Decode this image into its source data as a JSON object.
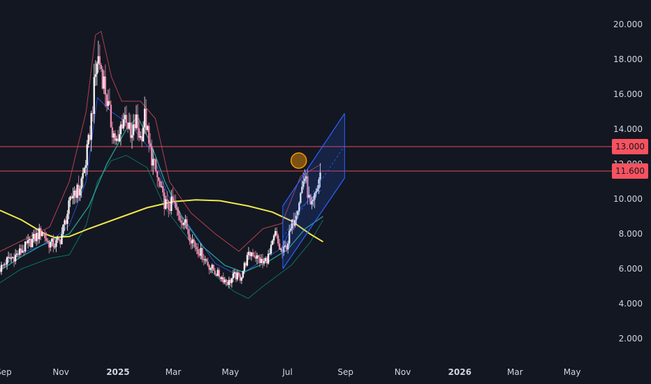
{
  "chart_data": {
    "type": "candlestick",
    "y_axis": {
      "ticks": [
        "2.000",
        "4.000",
        "6.000",
        "8.000",
        "10.000",
        "12.000",
        "14.000",
        "16.000",
        "18.000",
        "20.000"
      ],
      "ylim": [
        0.8,
        21
      ]
    },
    "x_axis": {
      "ticks": [
        {
          "label": "Sep",
          "date": "2024-09-01",
          "bold": false
        },
        {
          "label": "Nov",
          "date": "2024-11-01",
          "bold": false
        },
        {
          "label": "2025",
          "date": "2025-01-01",
          "bold": true
        },
        {
          "label": "Mar",
          "date": "2025-03-01",
          "bold": false
        },
        {
          "label": "May",
          "date": "2025-05-01",
          "bold": false
        },
        {
          "label": "Jul",
          "date": "2025-07-01",
          "bold": false
        },
        {
          "label": "Sep",
          "date": "2025-09-01",
          "bold": false
        },
        {
          "label": "Nov",
          "date": "2025-11-01",
          "bold": false
        },
        {
          "label": "2026",
          "date": "2026-01-01",
          "bold": true
        },
        {
          "label": "Mar",
          "date": "2026-03-01",
          "bold": false
        },
        {
          "label": "May",
          "date": "2026-05-01",
          "bold": false
        }
      ],
      "xlim": [
        "2024-08-28",
        "2026-05-30"
      ]
    },
    "horizontal_levels": [
      {
        "value": 13.0,
        "label": "13.000",
        "color": "#f7525f"
      },
      {
        "value": 11.6,
        "label": "11.600",
        "color": "#f7525f"
      }
    ],
    "price_series": [
      [
        "2024-08-28",
        6.0
      ],
      [
        "2024-09-05",
        6.5
      ],
      [
        "2024-09-15",
        6.8
      ],
      [
        "2024-09-25",
        7.3
      ],
      [
        "2024-10-05",
        7.8
      ],
      [
        "2024-10-12",
        8.2
      ],
      [
        "2024-10-18",
        7.5
      ],
      [
        "2024-10-25",
        7.4
      ],
      [
        "2024-10-31",
        7.6
      ],
      [
        "2024-11-05",
        8.6
      ],
      [
        "2024-11-10",
        9.6
      ],
      [
        "2024-11-15",
        10.5
      ],
      [
        "2024-11-20",
        10.4
      ],
      [
        "2024-11-25",
        11.5
      ],
      [
        "2024-11-28",
        12.3
      ],
      [
        "2024-12-01",
        13.3
      ],
      [
        "2024-12-06",
        16.0
      ],
      [
        "2024-12-10",
        18.2
      ],
      [
        "2024-12-14",
        17.5
      ],
      [
        "2024-12-18",
        16.4
      ],
      [
        "2024-12-22",
        15.0
      ],
      [
        "2024-12-27",
        13.8
      ],
      [
        "2025-01-01",
        13.0
      ],
      [
        "2025-01-05",
        14.5
      ],
      [
        "2025-01-10",
        14.8
      ],
      [
        "2025-01-15",
        13.2
      ],
      [
        "2025-01-20",
        14.5
      ],
      [
        "2025-01-25",
        13.5
      ],
      [
        "2025-01-30",
        14.8
      ],
      [
        "2025-02-03",
        13.0
      ],
      [
        "2025-02-08",
        12.0
      ],
      [
        "2025-02-13",
        11.0
      ],
      [
        "2025-02-18",
        10.0
      ],
      [
        "2025-02-23",
        9.5
      ],
      [
        "2025-03-01",
        9.8
      ],
      [
        "2025-03-06",
        9.0
      ],
      [
        "2025-03-12",
        8.8
      ],
      [
        "2025-03-18",
        8.0
      ],
      [
        "2025-03-25",
        7.3
      ],
      [
        "2025-04-01",
        6.8
      ],
      [
        "2025-04-08",
        6.2
      ],
      [
        "2025-04-15",
        5.8
      ],
      [
        "2025-04-22",
        5.5
      ],
      [
        "2025-04-29",
        5.2
      ],
      [
        "2025-05-05",
        5.6
      ],
      [
        "2025-05-12",
        5.5
      ],
      [
        "2025-05-18",
        6.5
      ],
      [
        "2025-05-24",
        7.0
      ],
      [
        "2025-05-30",
        6.6
      ],
      [
        "2025-06-05",
        6.3
      ],
      [
        "2025-06-12",
        6.8
      ],
      [
        "2025-06-18",
        8.0
      ],
      [
        "2025-06-22",
        7.2
      ],
      [
        "2025-06-26",
        6.9
      ],
      [
        "2025-07-01",
        7.5
      ],
      [
        "2025-07-06",
        8.5
      ],
      [
        "2025-07-11",
        9.5
      ],
      [
        "2025-07-16",
        10.5
      ],
      [
        "2025-07-19",
        11.4
      ],
      [
        "2025-07-22",
        10.6
      ],
      [
        "2025-07-26",
        9.3
      ],
      [
        "2025-07-29",
        9.8
      ],
      [
        "2025-08-02",
        10.7
      ],
      [
        "2025-08-06",
        11.8
      ]
    ],
    "moving_average_long": {
      "name": "",
      "color": "#f0e74b",
      "points": [
        [
          "2024-08-28",
          9.35
        ],
        [
          "2024-09-20",
          8.8
        ],
        [
          "2024-10-15",
          8.0
        ],
        [
          "2024-10-25",
          7.8
        ],
        [
          "2024-11-10",
          7.85
        ],
        [
          "2024-12-01",
          8.3
        ],
        [
          "2025-01-01",
          8.9
        ],
        [
          "2025-02-01",
          9.5
        ],
        [
          "2025-03-01",
          9.85
        ],
        [
          "2025-03-25",
          9.95
        ],
        [
          "2025-04-20",
          9.9
        ],
        [
          "2025-05-20",
          9.6
        ],
        [
          "2025-06-15",
          9.25
        ],
        [
          "2025-07-05",
          8.75
        ],
        [
          "2025-07-25",
          8.0
        ],
        [
          "2025-08-08",
          7.55
        ]
      ]
    },
    "ma_mid": {
      "color": "#26a69a",
      "points": [
        [
          "2024-08-28",
          5.9
        ],
        [
          "2024-09-20",
          6.7
        ],
        [
          "2024-10-20",
          7.6
        ],
        [
          "2024-11-10",
          8.0
        ],
        [
          "2024-12-01",
          9.6
        ],
        [
          "2024-12-20",
          12.0
        ],
        [
          "2025-01-10",
          14.0
        ],
        [
          "2025-01-22",
          14.7
        ],
        [
          "2025-02-05",
          13.2
        ],
        [
          "2025-02-20",
          11.0
        ],
        [
          "2025-03-10",
          9.0
        ],
        [
          "2025-04-01",
          7.3
        ],
        [
          "2025-04-25",
          6.2
        ],
        [
          "2025-05-15",
          5.8
        ],
        [
          "2025-06-10",
          6.4
        ],
        [
          "2025-07-01",
          7.1
        ],
        [
          "2025-07-20",
          8.3
        ],
        [
          "2025-08-08",
          9.0
        ]
      ]
    },
    "ma_fast": {
      "color": "#2962ff",
      "points": [
        [
          "2024-08-28",
          6.1
        ],
        [
          "2024-09-20",
          6.9
        ],
        [
          "2024-10-20",
          7.5
        ],
        [
          "2024-11-10",
          8.5
        ],
        [
          "2024-11-28",
          11.0
        ],
        [
          "2024-12-10",
          15.8
        ],
        [
          "2024-12-25",
          15.0
        ],
        [
          "2025-01-15",
          14.2
        ],
        [
          "2025-02-05",
          12.8
        ],
        [
          "2025-02-25",
          10.0
        ],
        [
          "2025-03-20",
          8.3
        ],
        [
          "2025-04-15",
          6.3
        ],
        [
          "2025-05-10",
          5.6
        ],
        [
          "2025-06-05",
          6.5
        ],
        [
          "2025-06-25",
          7.2
        ],
        [
          "2025-07-15",
          9.5
        ],
        [
          "2025-08-06",
          10.5
        ]
      ]
    },
    "band_upper": {
      "color": "#f7525f",
      "points": [
        [
          "2024-08-28",
          7.0
        ],
        [
          "2024-09-20",
          7.6
        ],
        [
          "2024-10-20",
          8.4
        ],
        [
          "2024-11-10",
          11.0
        ],
        [
          "2024-11-28",
          15.0
        ],
        [
          "2024-12-08",
          19.4
        ],
        [
          "2024-12-14",
          19.6
        ],
        [
          "2024-12-25",
          17.0
        ],
        [
          "2025-01-05",
          15.6
        ],
        [
          "2025-01-25",
          15.6
        ],
        [
          "2025-02-10",
          14.6
        ],
        [
          "2025-02-25",
          11.0
        ],
        [
          "2025-03-20",
          9.2
        ],
        [
          "2025-04-15",
          8.0
        ],
        [
          "2025-05-10",
          7.0
        ],
        [
          "2025-06-05",
          8.3
        ],
        [
          "2025-06-25",
          8.6
        ],
        [
          "2025-07-15",
          11.3
        ],
        [
          "2025-08-06",
          12.0
        ]
      ]
    },
    "band_lower": {
      "color": "#089981",
      "points": [
        [
          "2024-08-28",
          5.2
        ],
        [
          "2024-09-20",
          6.0
        ],
        [
          "2024-10-20",
          6.6
        ],
        [
          "2024-11-10",
          6.8
        ],
        [
          "2024-11-28",
          8.5
        ],
        [
          "2024-12-10",
          11.0
        ],
        [
          "2024-12-25",
          12.2
        ],
        [
          "2025-01-10",
          12.5
        ],
        [
          "2025-02-01",
          11.8
        ],
        [
          "2025-02-20",
          9.5
        ],
        [
          "2025-03-20",
          7.5
        ],
        [
          "2025-04-15",
          5.6
        ],
        [
          "2025-05-05",
          4.7
        ],
        [
          "2025-05-20",
          4.3
        ],
        [
          "2025-06-05",
          5.0
        ],
        [
          "2025-06-25",
          5.8
        ],
        [
          "2025-07-05",
          6.2
        ],
        [
          "2025-07-25",
          7.5
        ],
        [
          "2025-08-08",
          8.8
        ]
      ]
    },
    "channel": {
      "color": "#2962ff",
      "lower_start": [
        "2025-06-26",
        6.0
      ],
      "lower_end": [
        "2025-08-31",
        11.2
      ],
      "upper_start": [
        "2025-06-26",
        9.6
      ],
      "upper_end": [
        "2025-08-31",
        14.9
      ]
    },
    "highlight_circle": {
      "date": "2025-07-13",
      "value": 12.2,
      "color": "#ff9800"
    }
  }
}
